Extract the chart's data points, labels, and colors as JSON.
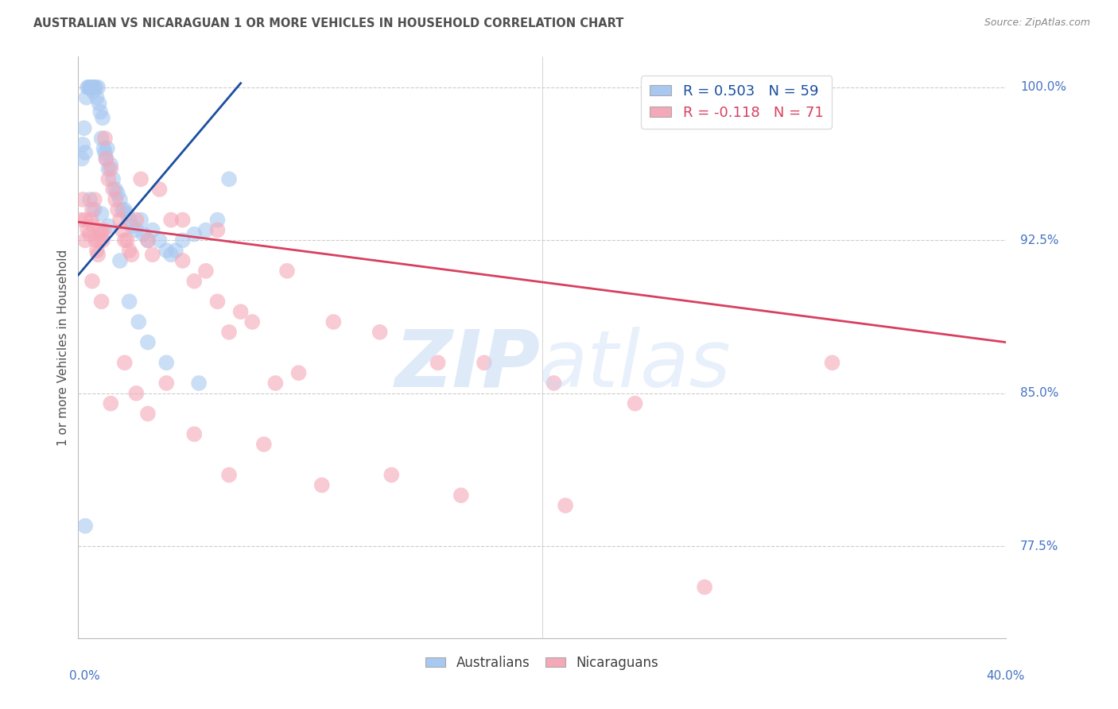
{
  "title": "AUSTRALIAN VS NICARAGUAN 1 OR MORE VEHICLES IN HOUSEHOLD CORRELATION CHART",
  "source": "Source: ZipAtlas.com",
  "ylabel": "1 or more Vehicles in Household",
  "legend_blue": "R = 0.503   N = 59",
  "legend_pink": "R = -0.118   N = 71",
  "legend_blue_label": "Australians",
  "legend_pink_label": "Nicaraguans",
  "r_blue": 0.503,
  "n_blue": 59,
  "r_pink": -0.118,
  "n_pink": 71,
  "blue_color": "#a8c8f0",
  "pink_color": "#f4a8b8",
  "blue_line_color": "#1a4fa0",
  "pink_line_color": "#d84060",
  "title_color": "#505050",
  "axis_label_color": "#4472c4",
  "grid_color": "#cccccc",
  "background_color": "#ffffff",
  "xmin": 0.0,
  "xmax": 40.0,
  "ymin": 73.0,
  "ymax": 101.5,
  "blue_line_x0": 0.0,
  "blue_line_y0": 90.8,
  "blue_line_x1": 7.0,
  "blue_line_y1": 100.2,
  "pink_line_x0": 0.0,
  "pink_line_y0": 93.4,
  "pink_line_x1": 40.0,
  "pink_line_y1": 87.5,
  "blue_scatter_x": [
    0.15,
    0.2,
    0.25,
    0.3,
    0.35,
    0.4,
    0.45,
    0.5,
    0.55,
    0.6,
    0.65,
    0.7,
    0.75,
    0.8,
    0.85,
    0.9,
    0.95,
    1.0,
    1.05,
    1.1,
    1.15,
    1.2,
    1.25,
    1.3,
    1.4,
    1.5,
    1.6,
    1.7,
    1.8,
    1.9,
    2.0,
    2.1,
    2.2,
    2.3,
    2.5,
    2.7,
    2.8,
    3.0,
    3.2,
    3.5,
    3.8,
    4.0,
    4.2,
    4.5,
    5.0,
    5.5,
    6.0,
    6.5,
    0.5,
    0.7,
    1.0,
    1.3,
    1.8,
    2.2,
    2.6,
    3.0,
    3.8,
    5.2,
    0.3
  ],
  "blue_scatter_y": [
    96.5,
    97.2,
    98.0,
    96.8,
    99.5,
    100.0,
    100.0,
    100.0,
    100.0,
    100.0,
    99.8,
    100.0,
    100.0,
    99.5,
    100.0,
    99.2,
    98.8,
    97.5,
    98.5,
    97.0,
    96.8,
    96.5,
    97.0,
    96.0,
    96.2,
    95.5,
    95.0,
    94.8,
    94.5,
    94.0,
    94.0,
    93.8,
    93.5,
    93.2,
    93.0,
    93.5,
    92.8,
    92.5,
    93.0,
    92.5,
    92.0,
    91.8,
    92.0,
    92.5,
    92.8,
    93.0,
    93.5,
    95.5,
    94.5,
    94.0,
    93.8,
    93.2,
    91.5,
    89.5,
    88.5,
    87.5,
    86.5,
    85.5,
    78.5
  ],
  "pink_scatter_x": [
    0.1,
    0.2,
    0.3,
    0.4,
    0.5,
    0.55,
    0.6,
    0.65,
    0.7,
    0.75,
    0.8,
    0.85,
    0.9,
    0.95,
    1.0,
    1.05,
    1.1,
    1.15,
    1.2,
    1.3,
    1.4,
    1.5,
    1.6,
    1.7,
    1.8,
    1.9,
    2.0,
    2.1,
    2.2,
    2.3,
    2.5,
    2.7,
    3.0,
    3.2,
    3.5,
    4.0,
    4.5,
    5.0,
    5.5,
    6.0,
    6.5,
    7.0,
    7.5,
    8.5,
    9.5,
    11.0,
    13.0,
    15.5,
    17.5,
    20.5,
    24.0,
    32.5,
    0.3,
    0.6,
    1.0,
    1.4,
    2.0,
    2.5,
    3.0,
    3.8,
    5.0,
    6.5,
    8.0,
    10.5,
    13.5,
    16.5,
    21.0,
    27.0,
    4.5,
    6.0,
    9.0
  ],
  "pink_scatter_y": [
    93.5,
    94.5,
    92.5,
    93.0,
    92.8,
    93.5,
    94.0,
    93.2,
    94.5,
    92.5,
    92.0,
    91.8,
    92.5,
    93.0,
    92.8,
    92.5,
    93.0,
    97.5,
    96.5,
    95.5,
    96.0,
    95.0,
    94.5,
    94.0,
    93.5,
    93.0,
    92.5,
    92.5,
    92.0,
    91.8,
    93.5,
    95.5,
    92.5,
    91.8,
    95.0,
    93.5,
    91.5,
    90.5,
    91.0,
    89.5,
    88.0,
    89.0,
    88.5,
    85.5,
    86.0,
    88.5,
    88.0,
    86.5,
    86.5,
    85.5,
    84.5,
    86.5,
    93.5,
    90.5,
    89.5,
    84.5,
    86.5,
    85.0,
    84.0,
    85.5,
    83.0,
    81.0,
    82.5,
    80.5,
    81.0,
    80.0,
    79.5,
    75.5,
    93.5,
    93.0,
    91.0
  ]
}
